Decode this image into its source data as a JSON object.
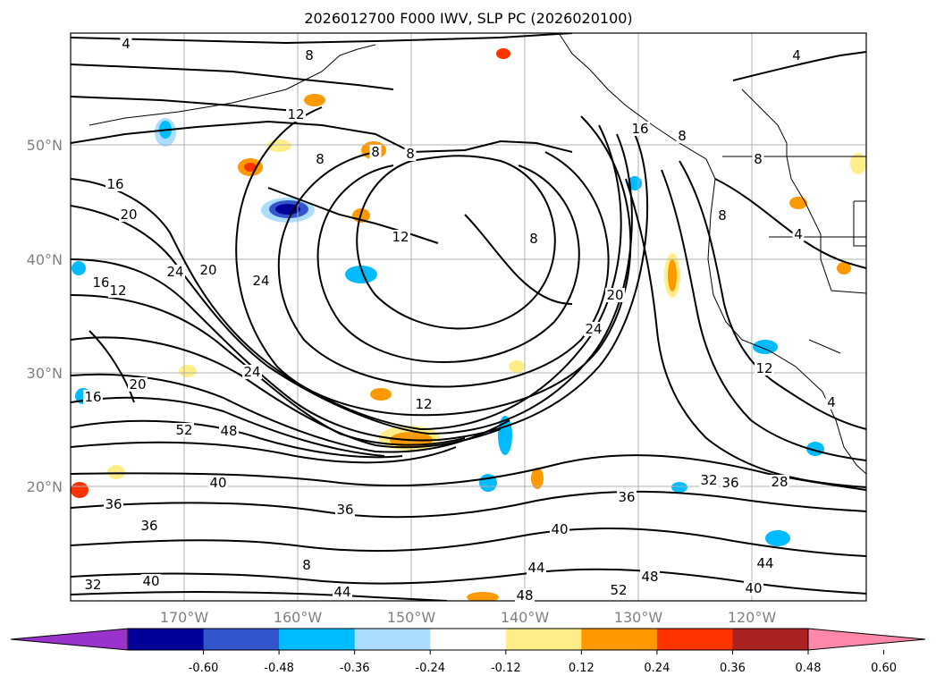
{
  "title": "2026012700 F000 IWV, SLP PC (2026020100)",
  "lat_labels": [
    "50°N",
    "40°N",
    "30°N",
    "20°N"
  ],
  "lon_labels": [
    "170°W",
    "160°W",
    "150°W",
    "140°W",
    "130°W",
    "120°W"
  ],
  "colorbar": {
    "ticks": [
      "-0.60",
      "-0.48",
      "-0.36",
      "-0.24",
      "-0.12",
      "0.12",
      "0.24",
      "0.36",
      "0.48",
      "0.60"
    ],
    "colors": [
      "#9933cc",
      "#000099",
      "#3355cc",
      "#00bbff",
      "#aaddff",
      "#ffffff",
      "#ffee88",
      "#ff9900",
      "#ff3300",
      "#aa2222",
      "#ff88aa"
    ]
  },
  "contour_labels": [
    {
      "text": "4"
    },
    {
      "text": "8"
    },
    {
      "text": "12"
    },
    {
      "text": "8"
    },
    {
      "text": "8"
    },
    {
      "text": "16"
    },
    {
      "text": "8"
    },
    {
      "text": "8"
    },
    {
      "text": "16"
    },
    {
      "text": "20"
    },
    {
      "text": "12"
    },
    {
      "text": "8"
    },
    {
      "text": "8"
    },
    {
      "text": "12"
    },
    {
      "text": "24"
    },
    {
      "text": "20"
    },
    {
      "text": "24"
    },
    {
      "text": "16"
    },
    {
      "text": "20"
    },
    {
      "text": "24"
    },
    {
      "text": "4"
    },
    {
      "text": "12"
    },
    {
      "text": "16"
    },
    {
      "text": "20"
    },
    {
      "text": "24"
    },
    {
      "text": "12"
    },
    {
      "text": "52"
    },
    {
      "text": "48"
    },
    {
      "text": "40"
    },
    {
      "text": "36"
    },
    {
      "text": "36"
    },
    {
      "text": "36"
    },
    {
      "text": "32"
    },
    {
      "text": "36"
    },
    {
      "text": "40"
    },
    {
      "text": "44"
    },
    {
      "text": "40"
    },
    {
      "text": "44"
    },
    {
      "text": "48"
    },
    {
      "text": "52"
    },
    {
      "text": "48"
    },
    {
      "text": "36"
    },
    {
      "text": "32"
    },
    {
      "text": "28"
    },
    {
      "text": "44"
    },
    {
      "text": "40"
    },
    {
      "text": "8"
    },
    {
      "text": "4"
    },
    {
      "text": "8"
    },
    {
      "text": "4"
    }
  ]
}
